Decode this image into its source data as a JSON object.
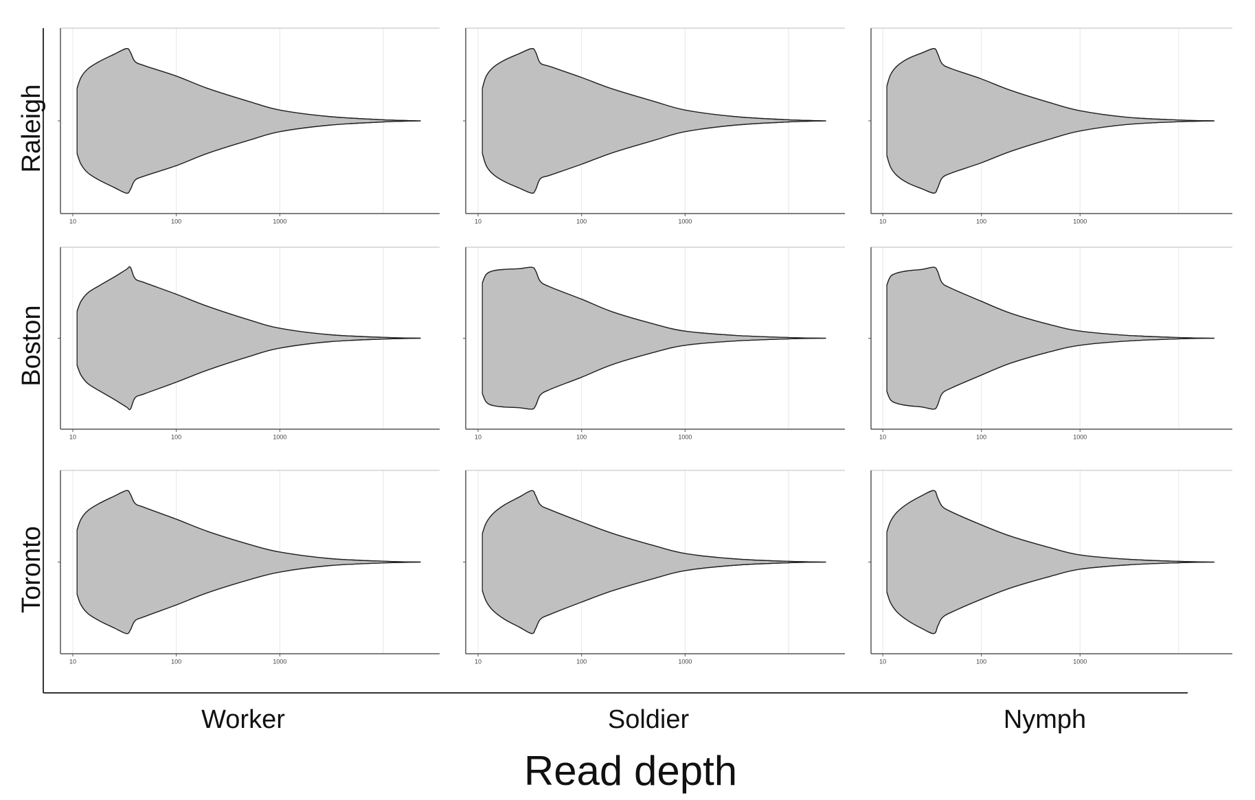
{
  "xlabel": "Read depth",
  "rows": [
    "Raleigh",
    "Boston",
    "Toronto"
  ],
  "columns": [
    "Worker",
    "Soldier",
    "Nymph"
  ],
  "chart_data": [
    {
      "type": "violin",
      "log_x": true,
      "xlim": [
        7.6,
        35000
      ],
      "xticks": [
        10,
        100,
        1000
      ],
      "xgrid": [
        10,
        100,
        1000,
        10000
      ],
      "color": "#c0c0c0",
      "x": [
        11,
        12,
        14,
        18,
        25,
        33,
        36,
        40,
        50,
        100,
        200,
        500,
        1000,
        3000,
        10000,
        23000
      ],
      "density": [
        0.45,
        0.6,
        0.72,
        0.82,
        0.92,
        1.0,
        0.95,
        0.82,
        0.76,
        0.62,
        0.45,
        0.27,
        0.15,
        0.06,
        0.015,
        0
      ]
    },
    {
      "type": "violin",
      "log_x": true,
      "xlim": [
        7.6,
        35000
      ],
      "xticks": [
        10,
        100,
        1000
      ],
      "xgrid": [
        10,
        100,
        1000,
        10000
      ],
      "color": "#c0c0c0",
      "x": [
        11,
        12,
        14,
        18,
        25,
        33,
        36,
        40,
        50,
        100,
        200,
        500,
        1000,
        3000,
        10000,
        23000
      ],
      "density": [
        0.45,
        0.62,
        0.74,
        0.84,
        0.93,
        1.0,
        0.95,
        0.8,
        0.75,
        0.6,
        0.44,
        0.27,
        0.15,
        0.06,
        0.015,
        0
      ]
    },
    {
      "type": "violin",
      "log_x": true,
      "xlim": [
        7.6,
        35000
      ],
      "xticks": [
        10,
        100,
        1000
      ],
      "xgrid": [
        10,
        100,
        1000,
        10000
      ],
      "color": "#c0c0c0",
      "x": [
        11,
        12,
        14,
        18,
        25,
        33,
        36,
        40,
        50,
        100,
        200,
        500,
        1000,
        3000,
        10000,
        23000
      ],
      "density": [
        0.48,
        0.64,
        0.76,
        0.86,
        0.94,
        1.0,
        0.93,
        0.79,
        0.72,
        0.58,
        0.42,
        0.25,
        0.14,
        0.05,
        0.012,
        0
      ]
    },
    {
      "type": "violin",
      "log_x": true,
      "xlim": [
        7.6,
        35000
      ],
      "xticks": [
        10,
        100,
        1000
      ],
      "xgrid": [
        10,
        100,
        1000,
        10000
      ],
      "color": "#c0c0c0",
      "x": [
        11,
        12,
        14,
        18,
        25,
        33,
        36,
        40,
        50,
        100,
        200,
        500,
        1000,
        3000,
        10000,
        23000
      ],
      "density": [
        0.38,
        0.52,
        0.64,
        0.74,
        0.86,
        0.97,
        1.0,
        0.84,
        0.78,
        0.62,
        0.45,
        0.26,
        0.14,
        0.05,
        0.012,
        0
      ]
    },
    {
      "type": "violin",
      "log_x": true,
      "xlim": [
        7.6,
        35000
      ],
      "xticks": [
        10,
        100,
        1000
      ],
      "xgrid": [
        10,
        100,
        1000,
        10000
      ],
      "color": "#c0c0c0",
      "x": [
        11,
        12,
        14,
        18,
        25,
        33,
        36,
        40,
        50,
        100,
        200,
        500,
        1000,
        3000,
        10000,
        23000
      ],
      "density": [
        0.78,
        0.9,
        0.95,
        0.97,
        0.98,
        1.0,
        0.95,
        0.8,
        0.72,
        0.55,
        0.37,
        0.2,
        0.1,
        0.04,
        0.01,
        0
      ]
    },
    {
      "type": "violin",
      "log_x": true,
      "xlim": [
        7.6,
        35000
      ],
      "xticks": [
        10,
        100,
        1000
      ],
      "xgrid": [
        10,
        100,
        1000,
        10000
      ],
      "color": "#c0c0c0",
      "x": [
        11,
        12,
        14,
        18,
        25,
        33,
        36,
        40,
        50,
        100,
        200,
        500,
        1000,
        3000,
        10000,
        23000
      ],
      "density": [
        0.75,
        0.87,
        0.92,
        0.95,
        0.97,
        1.0,
        0.94,
        0.78,
        0.7,
        0.52,
        0.35,
        0.19,
        0.1,
        0.04,
        0.01,
        0
      ]
    },
    {
      "type": "violin",
      "log_x": true,
      "xlim": [
        7.6,
        35000
      ],
      "xticks": [
        10,
        100,
        1000
      ],
      "xgrid": [
        10,
        100,
        1000,
        10000
      ],
      "color": "#c0c0c0",
      "x": [
        11,
        12,
        14,
        18,
        25,
        33,
        36,
        40,
        50,
        100,
        200,
        500,
        1000,
        3000,
        10000,
        23000
      ],
      "density": [
        0.45,
        0.6,
        0.72,
        0.82,
        0.92,
        1.0,
        0.95,
        0.82,
        0.76,
        0.6,
        0.43,
        0.25,
        0.14,
        0.05,
        0.012,
        0
      ]
    },
    {
      "type": "violin",
      "log_x": true,
      "xlim": [
        7.6,
        35000
      ],
      "xticks": [
        10,
        100,
        1000
      ],
      "xgrid": [
        10,
        100,
        1000,
        10000
      ],
      "color": "#c0c0c0",
      "x": [
        11,
        12,
        14,
        18,
        25,
        33,
        36,
        40,
        50,
        100,
        200,
        500,
        1000,
        3000,
        10000,
        23000
      ],
      "density": [
        0.4,
        0.55,
        0.68,
        0.8,
        0.91,
        1.0,
        0.93,
        0.8,
        0.73,
        0.56,
        0.4,
        0.23,
        0.12,
        0.045,
        0.01,
        0
      ]
    },
    {
      "type": "violin",
      "log_x": true,
      "xlim": [
        7.6,
        35000
      ],
      "xticks": [
        10,
        100,
        1000
      ],
      "xgrid": [
        10,
        100,
        1000,
        10000
      ],
      "color": "#c0c0c0",
      "x": [
        11,
        12,
        14,
        18,
        25,
        33,
        36,
        40,
        50,
        100,
        200,
        500,
        1000,
        3000,
        10000,
        23000
      ],
      "density": [
        0.42,
        0.57,
        0.7,
        0.82,
        0.93,
        1.0,
        0.9,
        0.78,
        0.7,
        0.52,
        0.36,
        0.2,
        0.1,
        0.04,
        0.01,
        0
      ]
    }
  ]
}
